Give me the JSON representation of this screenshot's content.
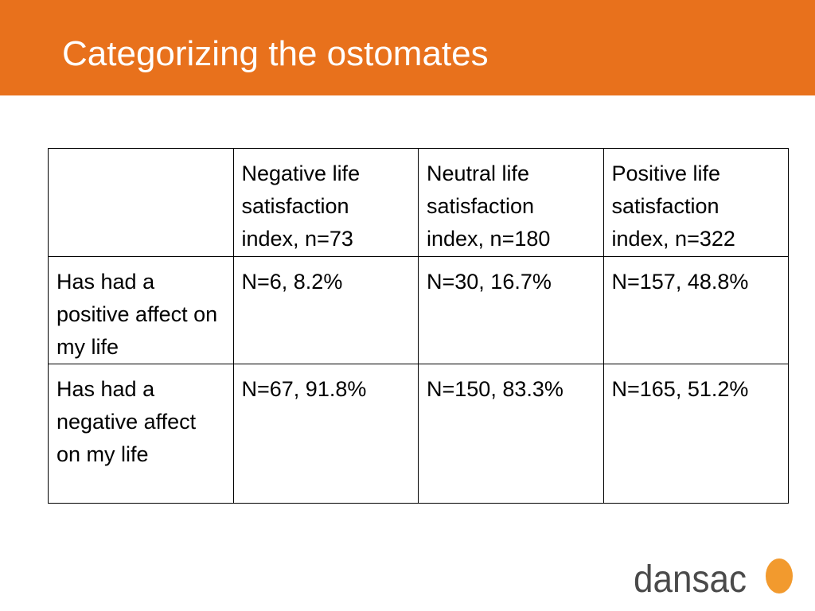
{
  "slide": {
    "title": "Categorizing the ostomates"
  },
  "table": {
    "header": [
      "",
      "Negative life satisfaction index, n=73",
      "Neutral life satisfaction index, n=180",
      "Positive life satisfaction index, n=322"
    ],
    "rows": [
      {
        "label": "Has had a positive affect on my life",
        "cells": [
          "N=6, 8.2%",
          "N=30, 16.7%",
          "N=157, 48.8%"
        ]
      },
      {
        "label": "Has had a negative affect on my life",
        "cells": [
          "N=67, 91.8%",
          "N=150, 83.3%",
          "N=165, 51.2%"
        ]
      }
    ]
  },
  "logo": {
    "text": "dansac"
  },
  "colors": {
    "header_bar": "#e8711c",
    "logo_circle": "#f29a2e",
    "logo_text": "#4a4a4a"
  }
}
